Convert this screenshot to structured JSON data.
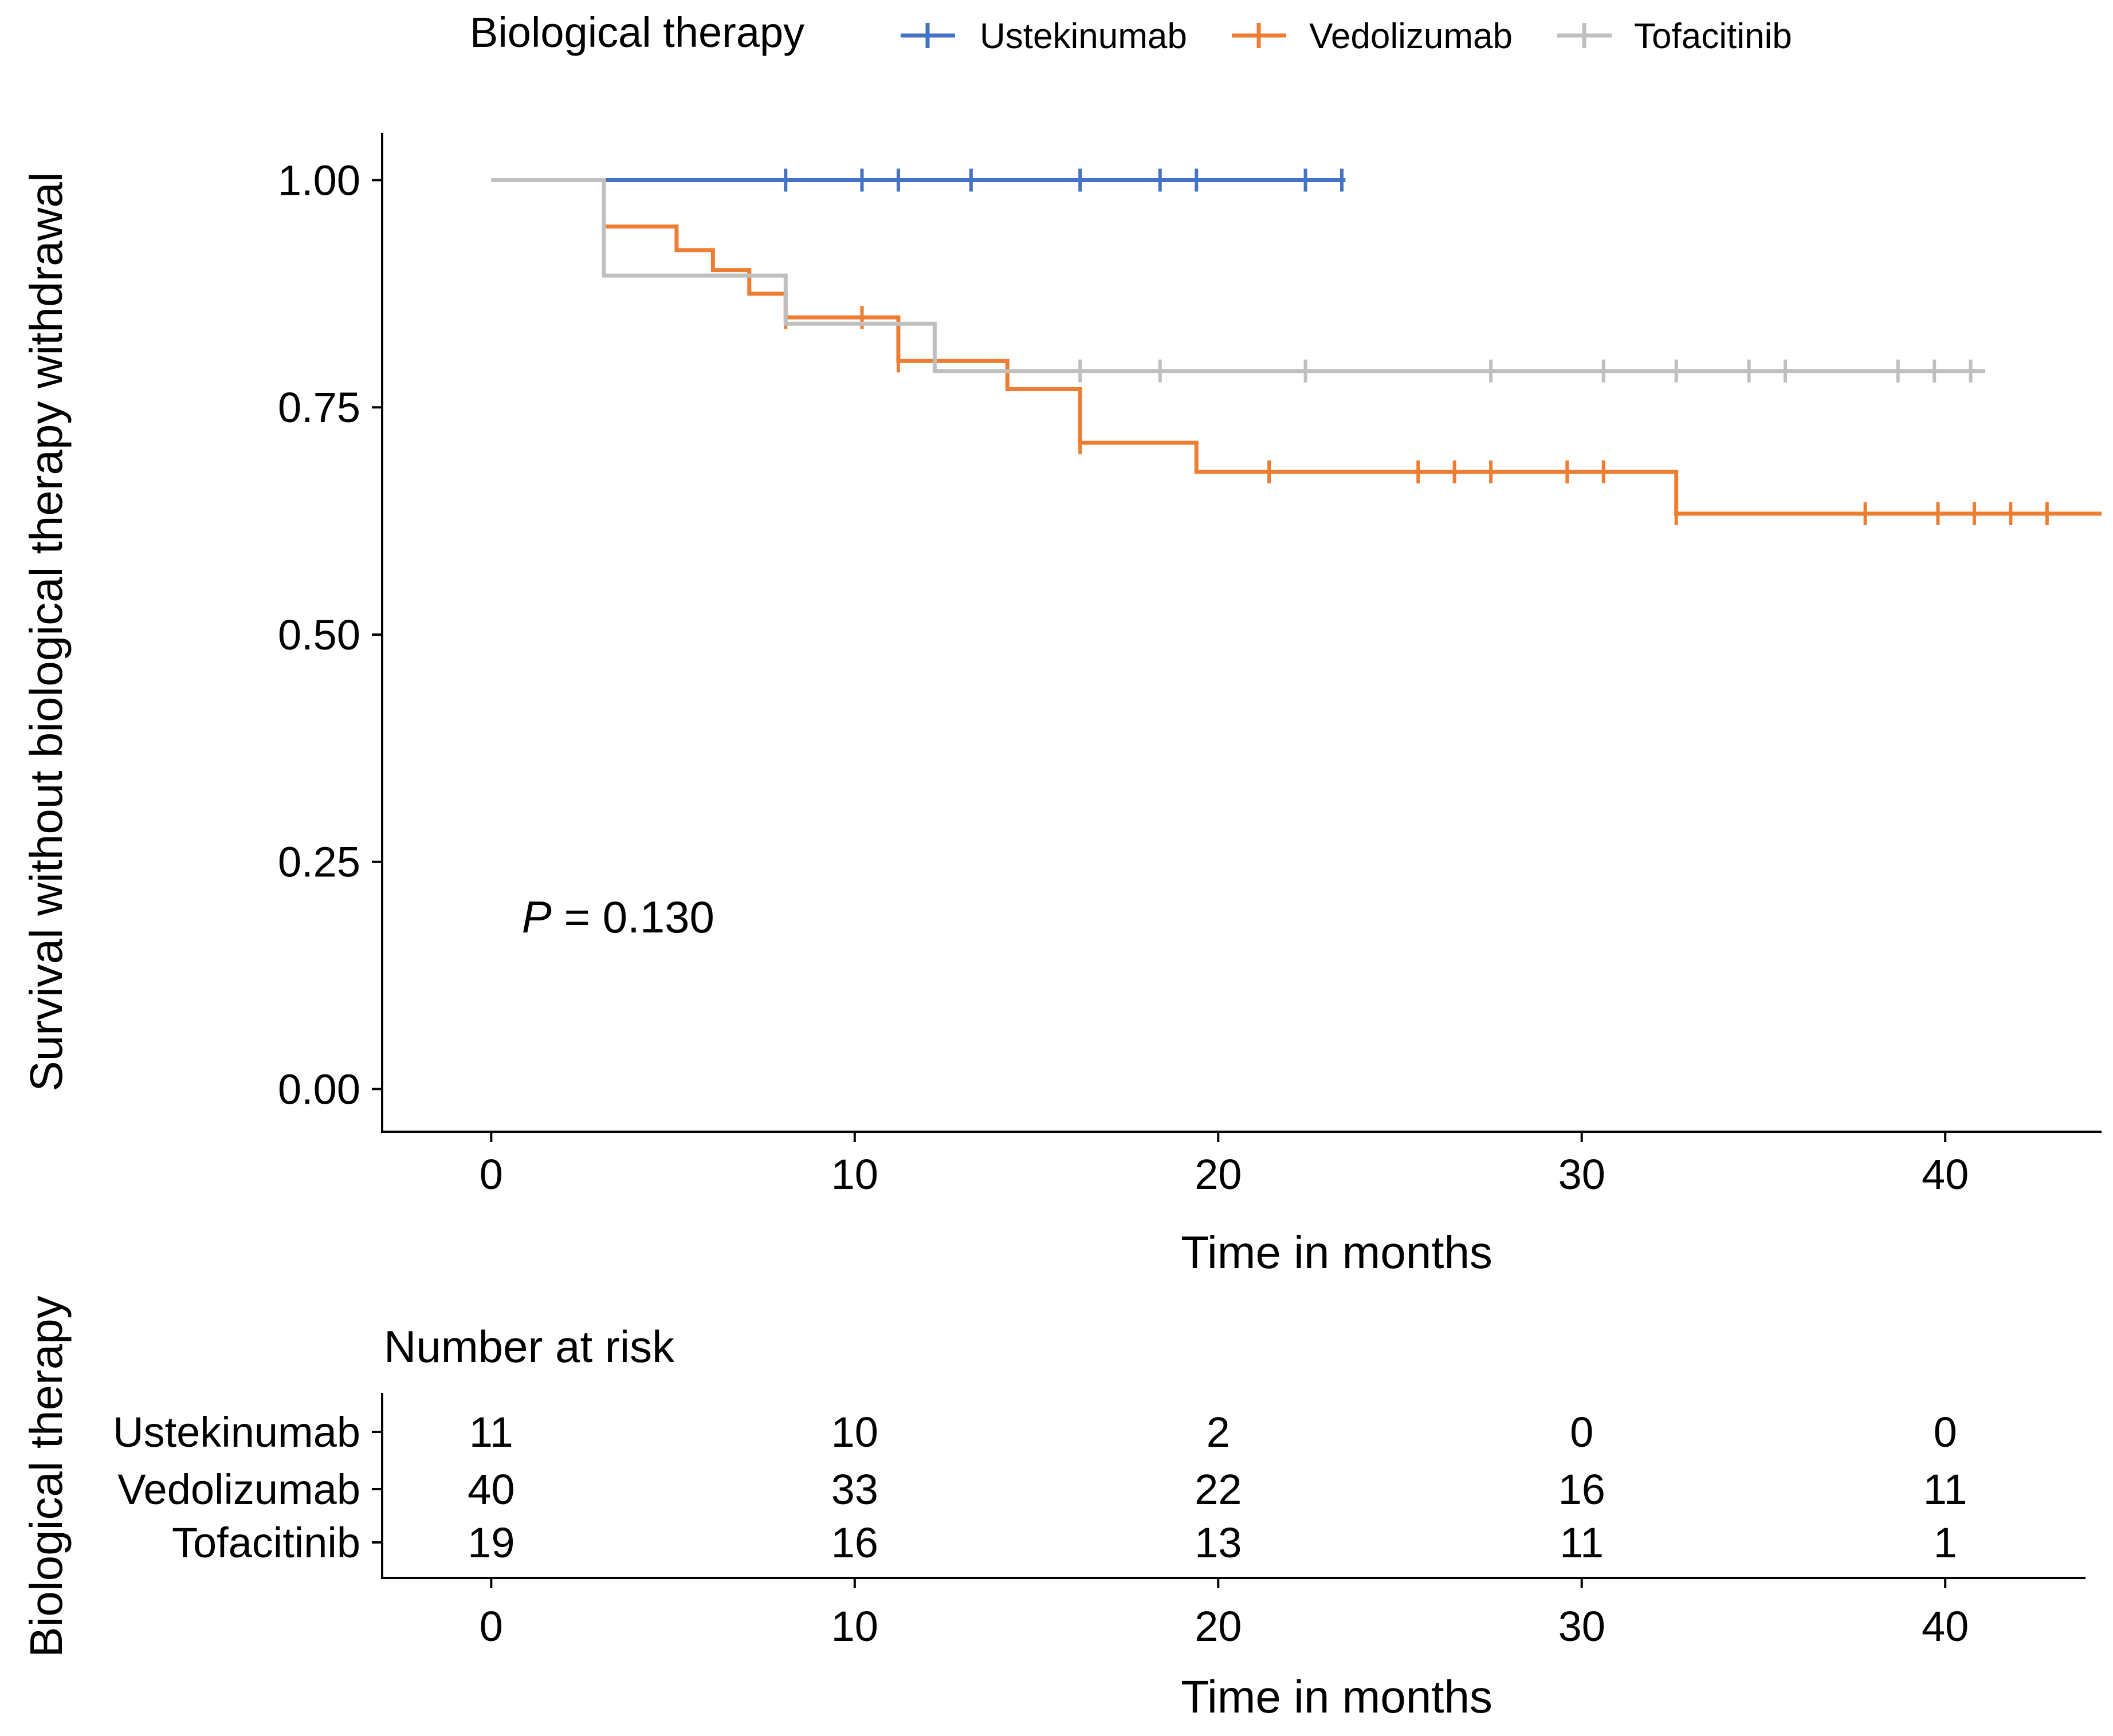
{
  "chart_data": {
    "type": "line",
    "subtype": "kaplan-meier",
    "legend": {
      "title": "Biological therapy",
      "position": "top",
      "entries": [
        "Ustekinumab",
        "Vedolizumab",
        "Tofacitinib"
      ]
    },
    "xlabel": "Time in months",
    "ylabel": "Survival without biological therapy withdrawal",
    "xlim": [
      -3,
      44.3
    ],
    "ylim": [
      -0.047,
      1.052
    ],
    "xticks": [
      0,
      10,
      20,
      30,
      40
    ],
    "yticks": [
      0.0,
      0.25,
      0.5,
      0.75,
      1.0
    ],
    "ytick_labels": [
      "0.00",
      "0.25",
      "0.50",
      "0.75",
      "1.00"
    ],
    "annotation": {
      "italic": "P",
      "rest": " = 0.130",
      "x": 1,
      "y": 0.19
    },
    "series": [
      {
        "name": "Ustekinumab",
        "color": "#4472C4",
        "steps": [
          [
            3.1,
            1.0
          ],
          [
            23.5,
            1.0
          ]
        ],
        "censor_times": [
          8.1,
          10.2,
          11.2,
          13.2,
          16.2,
          18.4,
          19.4,
          22.4,
          23.4
        ]
      },
      {
        "name": "Vedolizumab",
        "color": "#ED7D31",
        "steps": [
          [
            3.1,
            0.949
          ],
          [
            5.1,
            0.923
          ],
          [
            6.1,
            0.901
          ],
          [
            7.1,
            0.875
          ],
          [
            8.1,
            0.849
          ],
          [
            11.2,
            0.801
          ],
          [
            14.2,
            0.77
          ],
          [
            16.2,
            0.711
          ],
          [
            19.4,
            0.679
          ],
          [
            32.6,
            0.633
          ],
          [
            44.3,
            0.633
          ]
        ],
        "censor_times": [
          8.1,
          10.2,
          11.2,
          16.2,
          21.4,
          25.5,
          26.5,
          27.5,
          29.6,
          30.6,
          32.6,
          37.8,
          39.8,
          40.8,
          41.8,
          42.8
        ]
      },
      {
        "name": "Tofacitinib",
        "color": "#BFBFBF",
        "steps": [
          [
            0,
            1.0
          ],
          [
            3.1,
            0.895
          ],
          [
            8.1,
            0.842
          ],
          [
            12.2,
            0.79
          ],
          [
            41.1,
            0.79
          ]
        ],
        "censor_times": [
          16.2,
          18.4,
          22.4,
          27.5,
          30.6,
          32.6,
          34.6,
          35.6,
          38.7,
          39.7,
          40.7
        ]
      }
    ],
    "risk_table": {
      "title": "Number at risk",
      "ylabel": "Biological therapy",
      "xlabel": "Time in months",
      "times": [
        0,
        10,
        20,
        30,
        40
      ],
      "rows": [
        {
          "name": "Ustekinumab",
          "counts": [
            11,
            10,
            2,
            0,
            0
          ]
        },
        {
          "name": "Vedolizumab",
          "counts": [
            40,
            33,
            22,
            16,
            11
          ]
        },
        {
          "name": "Tofacitinib",
          "counts": [
            19,
            16,
            13,
            11,
            1
          ]
        }
      ]
    }
  }
}
